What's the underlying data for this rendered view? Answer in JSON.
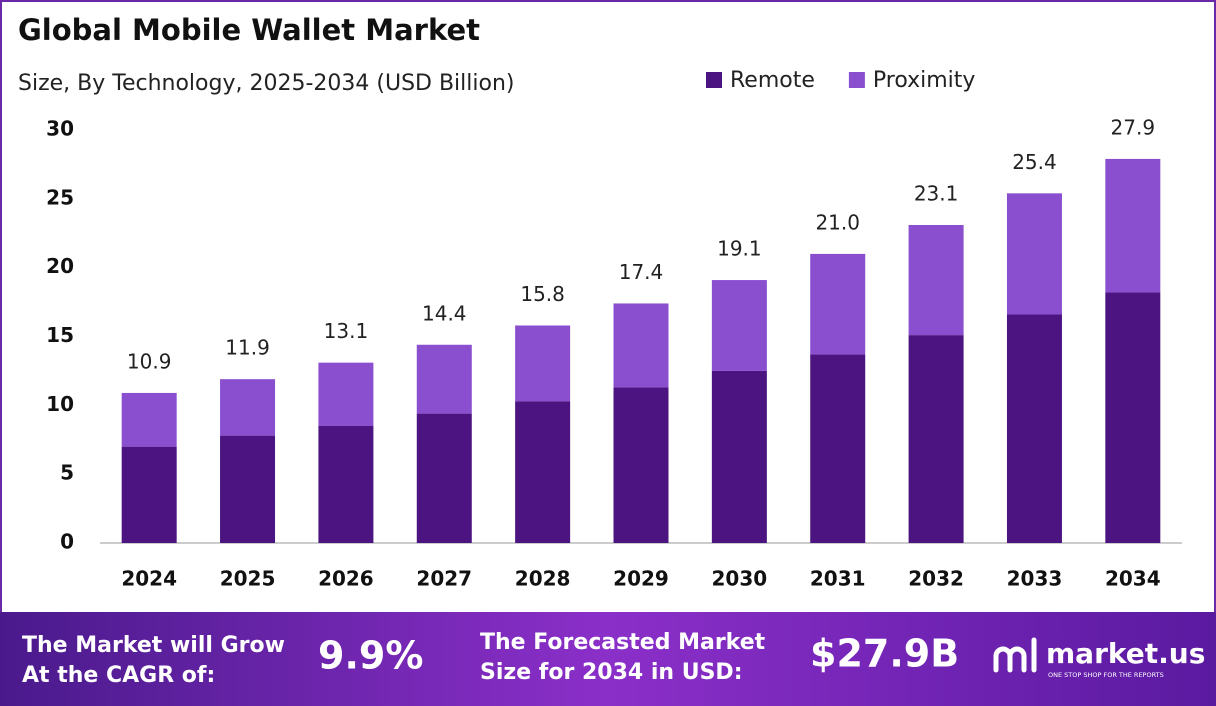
{
  "chart_data": {
    "type": "stacked-bar",
    "title": "Global Mobile Wallet Market",
    "subtitle": "Size, By Technology, 2025-2034 (USD Billion)",
    "categories": [
      "2024",
      "2025",
      "2026",
      "2027",
      "2028",
      "2029",
      "2030",
      "2031",
      "2032",
      "2033",
      "2034"
    ],
    "series": [
      {
        "name": "Remote",
        "color": "#4b1480",
        "values": [
          7.0,
          7.8,
          8.5,
          9.4,
          10.3,
          11.3,
          12.5,
          13.7,
          15.1,
          16.6,
          18.2
        ]
      },
      {
        "name": "Proximity",
        "color": "#8a4fcf",
        "values": [
          3.9,
          4.1,
          4.6,
          5.0,
          5.5,
          6.1,
          6.6,
          7.3,
          8.0,
          8.8,
          9.7
        ]
      }
    ],
    "totals": [
      10.9,
      11.9,
      13.1,
      14.4,
      15.8,
      17.4,
      19.1,
      {
        "value": 21.0,
        "label": "21.0"
      },
      23.1,
      25.4,
      27.9
    ],
    "ylim": [
      0,
      30
    ],
    "yticks": [
      0,
      5,
      10,
      15,
      20,
      25,
      30
    ],
    "grid": false,
    "legend": "top-right"
  },
  "footer": {
    "cagr_text": [
      "The Market will Grow",
      "At the CAGR of:"
    ],
    "cagr": "9.9%",
    "forecast_text": [
      "The Forecasted Market",
      "Size for 2034 in USD:"
    ],
    "forecast": "$27.9B",
    "brand": "market.us",
    "tagline": "ONE STOP SHOP FOR THE REPORTS"
  }
}
